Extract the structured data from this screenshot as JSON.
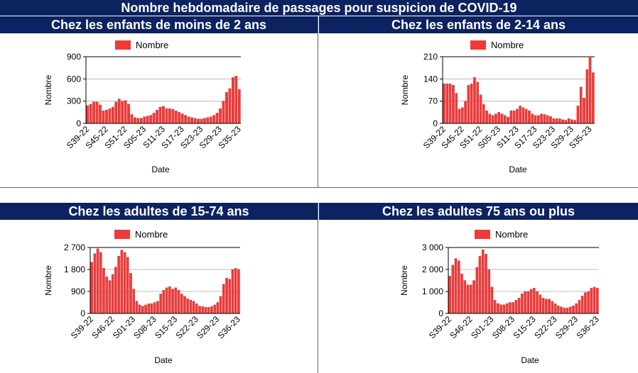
{
  "page_title": "Nombre hebdomadaire de passages pour suspicion de COVID-19",
  "colors": {
    "banner": "#0d2260",
    "bar": "#f03a3a",
    "bar_stroke": "#c41c1c"
  },
  "chart_data": [
    {
      "type": "bar",
      "title": "Chez les enfants de moins de 2 ans",
      "xlabel": "Date",
      "ylabel": "Nombre",
      "legend": "Nombre",
      "legend_position": "top-left",
      "ylim": [
        0,
        900
      ],
      "yticks": [
        0,
        300,
        600,
        900
      ],
      "ytick_labels": [
        "0",
        "300",
        "600",
        "900"
      ],
      "xtick_labels": [
        "S39-22",
        "S45-22",
        "S51-22",
        "S05-23",
        "S11-23",
        "S17-23",
        "S23-23",
        "S29-23",
        "S35-23"
      ],
      "xtick_index": [
        0,
        6,
        12,
        18,
        24,
        30,
        36,
        42,
        48
      ],
      "grid": true,
      "values": [
        240,
        260,
        290,
        290,
        250,
        170,
        180,
        200,
        220,
        290,
        330,
        300,
        310,
        260,
        120,
        80,
        70,
        70,
        90,
        100,
        110,
        140,
        180,
        220,
        230,
        200,
        200,
        190,
        170,
        150,
        130,
        110,
        90,
        80,
        70,
        60,
        60,
        70,
        80,
        90,
        110,
        140,
        200,
        300,
        420,
        470,
        620,
        640,
        460
      ]
    },
    {
      "type": "bar",
      "title": "Chez les enfants de 2-14 ans",
      "xlabel": "Date",
      "ylabel": "Nombre",
      "legend": "Nombre",
      "legend_position": "top-left",
      "ylim": [
        0,
        210
      ],
      "yticks": [
        0,
        70,
        140,
        210
      ],
      "ytick_labels": [
        "0",
        "70",
        "140",
        "210"
      ],
      "xtick_labels": [
        "S39-22",
        "S45-22",
        "S51-22",
        "S05-23",
        "S11-23",
        "S17-23",
        "S23-23",
        "S29-23",
        "S35-23"
      ],
      "xtick_index": [
        0,
        6,
        12,
        18,
        24,
        30,
        36,
        42,
        48
      ],
      "grid": true,
      "values": [
        125,
        125,
        125,
        120,
        95,
        45,
        50,
        70,
        120,
        125,
        145,
        130,
        90,
        60,
        40,
        30,
        25,
        30,
        35,
        30,
        25,
        20,
        40,
        40,
        45,
        55,
        50,
        45,
        40,
        30,
        25,
        25,
        30,
        28,
        25,
        22,
        15,
        15,
        15,
        12,
        10,
        15,
        12,
        10,
        55,
        115,
        80,
        170,
        210,
        160
      ]
    },
    {
      "type": "bar",
      "title": "Chez les adultes de 15-74 ans",
      "xlabel": "Date",
      "ylabel": "Nombre",
      "legend": "Nombre",
      "legend_position": "top-left",
      "ylim": [
        0,
        2700
      ],
      "yticks": [
        0,
        900,
        1800,
        2700
      ],
      "ytick_labels": [
        "0",
        "900",
        "1 800",
        "2 700"
      ],
      "xtick_labels": [
        "S39-22",
        "S46-22",
        "S01-23",
        "S08-23",
        "S15-23",
        "S22-23",
        "S29-23",
        "S36-23"
      ],
      "xtick_index": [
        0,
        7,
        14,
        21,
        28,
        35,
        42,
        49
      ],
      "grid": true,
      "values": [
        2100,
        2450,
        2650,
        2500,
        1850,
        1500,
        1350,
        1600,
        1900,
        2350,
        2600,
        2500,
        2300,
        1650,
        1000,
        500,
        350,
        300,
        350,
        400,
        400,
        450,
        500,
        800,
        950,
        1050,
        1100,
        1000,
        1050,
        950,
        800,
        700,
        600,
        550,
        500,
        400,
        300,
        280,
        250,
        250,
        280,
        350,
        450,
        700,
        1200,
        1450,
        1400,
        1800,
        1850,
        1800
      ]
    },
    {
      "type": "bar",
      "title": "Chez les adultes 75 ans ou plus",
      "xlabel": "Date",
      "ylabel": "Nombre",
      "legend": "Nombre",
      "legend_position": "top-left",
      "ylim": [
        0,
        3000
      ],
      "yticks": [
        0,
        1000,
        2000,
        3000
      ],
      "ytick_labels": [
        "0",
        "1 000",
        "2 000",
        "3 000"
      ],
      "xtick_labels": [
        "S39-22",
        "S46-22",
        "S01-23",
        "S08-23",
        "S15-23",
        "S22-23",
        "S29-23",
        "S36-23"
      ],
      "xtick_index": [
        0,
        7,
        14,
        21,
        28,
        35,
        42,
        49
      ],
      "grid": true,
      "values": [
        1700,
        2200,
        2500,
        2400,
        1800,
        1500,
        1300,
        1300,
        1500,
        2100,
        2600,
        2900,
        2700,
        2000,
        1200,
        600,
        450,
        400,
        400,
        450,
        500,
        500,
        600,
        700,
        900,
        1000,
        1000,
        1100,
        1150,
        1000,
        850,
        700,
        650,
        650,
        550,
        450,
        350,
        300,
        250,
        250,
        300,
        350,
        450,
        600,
        800,
        950,
        1000,
        1150,
        1200,
        1150
      ]
    }
  ]
}
